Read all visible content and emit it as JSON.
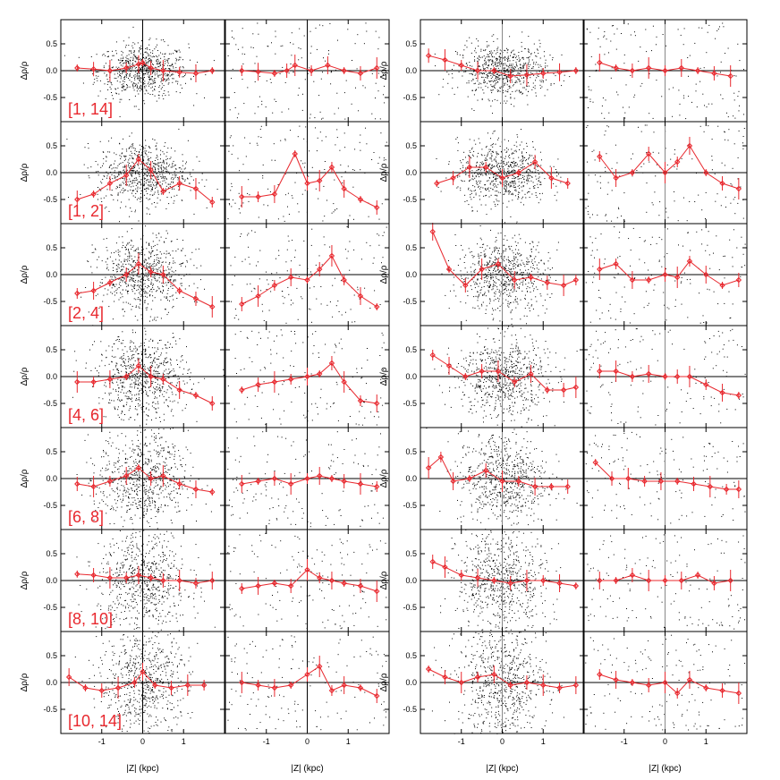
{
  "figure": {
    "ylabel": "Δρ/ρ",
    "xlabel": "|Z| (kpc)",
    "panel_labels": [
      "[1, 14]",
      "[1, 2]",
      "[2, 4]",
      "[4, 6]",
      "[6, 8]",
      "[8, 10]",
      "[10, 14]"
    ],
    "colors": {
      "model": "#e8282e",
      "points": "#000000",
      "axes": "#000000",
      "label": "#e8282e"
    }
  },
  "chart_data": {
    "type": "scatter",
    "layout": "7 rows × 4 columns of panels",
    "xlabel": "|Z| (kpc)",
    "ylabel": "Δρ/ρ",
    "xlim": [
      -2.0,
      2.0
    ],
    "ylim": [
      -0.95,
      0.95
    ],
    "x_ticks": [
      -1,
      0,
      1
    ],
    "x_tick_labels": [
      "-1",
      "0",
      "1"
    ],
    "y_ticks": [
      0.5,
      0.0,
      -0.5
    ],
    "y_tick_labels": [
      "0.5",
      "0.0",
      "-0.5"
    ],
    "zero_line": true,
    "grid": false,
    "rows": [
      {
        "label": "[1, 14]",
        "columns": [
          {
            "binned_x": [
              -1.6,
              -1.2,
              -0.8,
              -0.4,
              -0.1,
              0.0,
              0.2,
              0.5,
              0.9,
              1.3,
              1.7
            ],
            "binned_y": [
              0.05,
              0.03,
              0.0,
              0.05,
              0.12,
              0.15,
              0.05,
              0.0,
              -0.03,
              -0.05,
              0.0
            ]
          },
          {
            "binned_x": [
              -1.6,
              -1.2,
              -0.8,
              -0.5,
              -0.3,
              0.1,
              0.5,
              0.9,
              1.3,
              1.7
            ],
            "binned_y": [
              0.0,
              -0.02,
              -0.05,
              0.0,
              0.1,
              0.0,
              0.1,
              0.0,
              -0.05,
              0.05
            ]
          },
          {
            "binned_x": [
              -1.8,
              -1.4,
              -1.0,
              -0.6,
              -0.2,
              0.2,
              0.6,
              1.0,
              1.4,
              1.8
            ],
            "binned_y": [
              0.28,
              0.2,
              0.1,
              0.0,
              0.0,
              -0.1,
              -0.08,
              -0.05,
              -0.03,
              0.0
            ]
          },
          {
            "binned_x": [
              -1.6,
              -1.2,
              -0.8,
              -0.4,
              0.0,
              0.4,
              0.8,
              1.2,
              1.6
            ],
            "binned_y": [
              0.15,
              0.05,
              0.0,
              0.05,
              0.0,
              0.05,
              0.0,
              -0.05,
              -0.1
            ]
          }
        ]
      },
      {
        "label": "[1, 2]",
        "columns": [
          {
            "binned_x": [
              -1.6,
              -1.2,
              -0.8,
              -0.4,
              -0.1,
              0.2,
              0.5,
              0.9,
              1.3,
              1.7
            ],
            "binned_y": [
              -0.5,
              -0.4,
              -0.2,
              -0.05,
              0.25,
              0.05,
              -0.35,
              -0.2,
              -0.3,
              -0.55
            ]
          },
          {
            "binned_x": [
              -1.6,
              -1.2,
              -0.8,
              -0.3,
              0.0,
              0.3,
              0.6,
              0.9,
              1.3,
              1.7
            ],
            "binned_y": [
              -0.45,
              -0.45,
              -0.4,
              0.35,
              -0.2,
              -0.15,
              0.1,
              -0.3,
              -0.5,
              -0.65
            ]
          },
          {
            "binned_x": [
              -1.6,
              -1.2,
              -0.8,
              -0.4,
              0.0,
              0.4,
              0.8,
              1.2,
              1.6
            ],
            "binned_y": [
              -0.2,
              -0.1,
              0.1,
              0.1,
              -0.1,
              0.0,
              0.2,
              -0.1,
              -0.2
            ]
          },
          {
            "binned_x": [
              -1.6,
              -1.2,
              -0.8,
              -0.4,
              0.0,
              0.3,
              0.6,
              1.0,
              1.4,
              1.8
            ],
            "binned_y": [
              0.3,
              -0.1,
              0.0,
              0.35,
              0.0,
              0.2,
              0.5,
              0.0,
              -0.2,
              -0.3
            ]
          }
        ]
      },
      {
        "label": "[2, 4]",
        "columns": [
          {
            "binned_x": [
              -1.6,
              -1.2,
              -0.8,
              -0.4,
              -0.1,
              0.2,
              0.5,
              0.9,
              1.3,
              1.7
            ],
            "binned_y": [
              -0.35,
              -0.3,
              -0.15,
              0.0,
              0.2,
              0.05,
              0.0,
              -0.3,
              -0.45,
              -0.6
            ]
          },
          {
            "binned_x": [
              -1.6,
              -1.2,
              -0.8,
              -0.4,
              0.0,
              0.3,
              0.6,
              0.9,
              1.3,
              1.7
            ],
            "binned_y": [
              -0.55,
              -0.4,
              -0.2,
              -0.05,
              -0.1,
              0.1,
              0.35,
              -0.1,
              -0.4,
              -0.6
            ]
          },
          {
            "binned_x": [
              -1.7,
              -1.3,
              -0.9,
              -0.5,
              -0.1,
              0.3,
              0.7,
              1.1,
              1.5,
              1.8
            ],
            "binned_y": [
              0.8,
              0.1,
              -0.2,
              0.1,
              0.2,
              -0.1,
              -0.05,
              -0.15,
              -0.2,
              -0.1
            ]
          },
          {
            "binned_x": [
              -1.6,
              -1.2,
              -0.8,
              -0.4,
              0.0,
              0.3,
              0.6,
              1.0,
              1.4,
              1.8
            ],
            "binned_y": [
              0.1,
              0.2,
              -0.1,
              -0.1,
              0.0,
              -0.05,
              0.25,
              0.0,
              -0.2,
              -0.1
            ]
          }
        ]
      },
      {
        "label": "[4, 6]",
        "columns": [
          {
            "binned_x": [
              -1.6,
              -1.2,
              -0.8,
              -0.4,
              -0.1,
              0.2,
              0.5,
              0.9,
              1.3,
              1.7
            ],
            "binned_y": [
              -0.1,
              -0.1,
              -0.05,
              0.0,
              0.2,
              0.0,
              -0.05,
              -0.25,
              -0.35,
              -0.5
            ]
          },
          {
            "binned_x": [
              -1.6,
              -1.2,
              -0.8,
              -0.4,
              0.0,
              0.3,
              0.6,
              0.9,
              1.3,
              1.7
            ],
            "binned_y": [
              -0.25,
              -0.15,
              -0.1,
              -0.05,
              0.0,
              0.05,
              0.25,
              -0.1,
              -0.45,
              -0.5
            ]
          },
          {
            "binned_x": [
              -1.7,
              -1.3,
              -0.9,
              -0.5,
              -0.1,
              0.3,
              0.7,
              1.1,
              1.5,
              1.8
            ],
            "binned_y": [
              0.4,
              0.2,
              0.0,
              0.1,
              0.1,
              -0.1,
              0.05,
              -0.25,
              -0.25,
              -0.2
            ]
          },
          {
            "binned_x": [
              -1.6,
              -1.2,
              -0.8,
              -0.4,
              0.0,
              0.3,
              0.6,
              1.0,
              1.4,
              1.8
            ],
            "binned_y": [
              0.1,
              0.1,
              0.0,
              0.05,
              0.0,
              0.0,
              0.0,
              -0.15,
              -0.3,
              -0.35
            ]
          }
        ]
      },
      {
        "label": "[6, 8]",
        "columns": [
          {
            "binned_x": [
              -1.6,
              -1.2,
              -0.8,
              -0.4,
              -0.1,
              0.2,
              0.5,
              0.9,
              1.3,
              1.7
            ],
            "binned_y": [
              -0.1,
              -0.15,
              -0.05,
              0.05,
              0.2,
              0.0,
              0.05,
              -0.1,
              -0.2,
              -0.25
            ]
          },
          {
            "binned_x": [
              -1.6,
              -1.2,
              -0.8,
              -0.4,
              0.0,
              0.3,
              0.6,
              0.9,
              1.3,
              1.7
            ],
            "binned_y": [
              -0.1,
              -0.05,
              0.0,
              -0.1,
              0.0,
              0.05,
              0.0,
              -0.05,
              -0.1,
              -0.15
            ]
          },
          {
            "binned_x": [
              -1.8,
              -1.5,
              -1.2,
              -0.8,
              -0.4,
              0.0,
              0.4,
              0.8,
              1.2,
              1.6
            ],
            "binned_y": [
              0.2,
              0.4,
              -0.05,
              0.0,
              0.15,
              -0.05,
              -0.05,
              -0.15,
              -0.15,
              -0.15
            ]
          },
          {
            "binned_x": [
              -1.7,
              -1.3,
              -0.9,
              -0.5,
              -0.1,
              0.3,
              0.7,
              1.1,
              1.5,
              1.8
            ],
            "binned_y": [
              0.3,
              0.0,
              0.0,
              -0.05,
              -0.05,
              -0.05,
              -0.1,
              -0.15,
              -0.2,
              -0.2
            ]
          }
        ]
      },
      {
        "label": "[8, 10]",
        "columns": [
          {
            "binned_x": [
              -1.6,
              -1.2,
              -0.8,
              -0.4,
              -0.1,
              0.2,
              0.5,
              0.9,
              1.3,
              1.7
            ],
            "binned_y": [
              0.12,
              0.1,
              0.05,
              0.05,
              0.1,
              0.05,
              0.0,
              0.0,
              -0.05,
              0.0
            ]
          },
          {
            "binned_x": [
              -1.6,
              -1.2,
              -0.8,
              -0.4,
              0.0,
              0.3,
              0.6,
              0.9,
              1.3,
              1.7
            ],
            "binned_y": [
              -0.15,
              -0.1,
              -0.05,
              -0.1,
              0.2,
              0.05,
              0.0,
              -0.05,
              -0.1,
              -0.2
            ]
          },
          {
            "binned_x": [
              -1.7,
              -1.4,
              -1.0,
              -0.6,
              -0.2,
              0.2,
              0.6,
              1.0,
              1.4,
              1.8
            ],
            "binned_y": [
              0.35,
              0.25,
              0.1,
              0.05,
              0.0,
              -0.05,
              0.0,
              0.0,
              -0.05,
              -0.1
            ]
          },
          {
            "binned_x": [
              -1.6,
              -1.2,
              -0.8,
              -0.4,
              0.0,
              0.4,
              0.8,
              1.2,
              1.6
            ],
            "binned_y": [
              0.0,
              0.0,
              0.1,
              0.0,
              0.0,
              0.0,
              0.1,
              -0.05,
              0.0
            ]
          }
        ]
      },
      {
        "label": "[10, 14]",
        "columns": [
          {
            "binned_x": [
              -1.8,
              -1.4,
              -1.0,
              -0.6,
              -0.2,
              0.0,
              0.3,
              0.7,
              1.1,
              1.5
            ],
            "binned_y": [
              0.1,
              -0.1,
              -0.15,
              -0.1,
              0.0,
              0.2,
              -0.05,
              -0.1,
              -0.05,
              -0.05
            ]
          },
          {
            "binned_x": [
              -1.6,
              -1.2,
              -0.8,
              -0.4,
              0.0,
              0.3,
              0.6,
              0.9,
              1.3,
              1.7
            ],
            "binned_y": [
              0.0,
              -0.05,
              -0.1,
              -0.05,
              0.15,
              0.3,
              -0.15,
              -0.05,
              -0.1,
              -0.25
            ]
          },
          {
            "binned_x": [
              -1.8,
              -1.4,
              -1.0,
              -0.6,
              -0.2,
              0.2,
              0.6,
              1.0,
              1.4,
              1.8
            ],
            "binned_y": [
              0.25,
              0.1,
              0.0,
              0.1,
              0.15,
              -0.05,
              0.0,
              -0.05,
              -0.1,
              -0.05
            ]
          },
          {
            "binned_x": [
              -1.6,
              -1.2,
              -0.8,
              -0.4,
              0.0,
              0.3,
              0.6,
              1.0,
              1.4,
              1.8
            ],
            "binned_y": [
              0.15,
              0.05,
              0.0,
              -0.05,
              0.0,
              -0.2,
              0.05,
              -0.1,
              -0.15,
              -0.2
            ]
          }
        ]
      }
    ]
  }
}
